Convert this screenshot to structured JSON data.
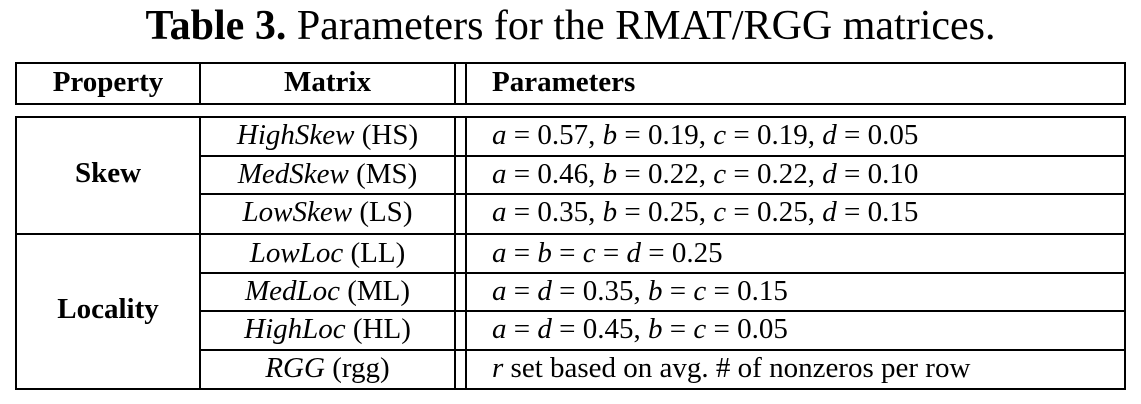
{
  "caption": {
    "lead": "Table 3.",
    "text": "Parameters for the RMAT/RGG matrices."
  },
  "header": {
    "property": "Property",
    "matrix": "Matrix",
    "parameters": "Parameters"
  },
  "groups": {
    "skew": "Skew",
    "locality": "Locality"
  },
  "rows": [
    {
      "name": "HighSkew",
      "abbr": "(HS)"
    },
    {
      "name": "MedSkew",
      "abbr": "(MS)"
    },
    {
      "name": "LowSkew",
      "abbr": "(LS)"
    },
    {
      "name": "LowLoc",
      "abbr": "(LL)"
    },
    {
      "name": "MedLoc",
      "abbr": "(ML)"
    },
    {
      "name": "HighLoc",
      "abbr": "(HL)"
    },
    {
      "name": "RGG",
      "abbr": "(rgg)"
    }
  ],
  "params": {
    "hs": {
      "a": "0.57",
      "b": "0.19",
      "c": "0.19",
      "d": "0.05"
    },
    "ms": {
      "a": "0.46",
      "b": "0.22",
      "c": "0.22",
      "d": "0.10"
    },
    "ls": {
      "a": "0.35",
      "b": "0.25",
      "c": "0.25",
      "d": "0.15"
    },
    "ll": {
      "all": "0.25"
    },
    "ml": {
      "ad": "0.35",
      "bc": "0.15"
    },
    "hl": {
      "ad": "0.45",
      "bc": "0.05"
    },
    "rgg": {
      "var": "r",
      "text": "set based on avg. # of nonzeros per row"
    }
  },
  "symbols": {
    "a": "a",
    "b": "b",
    "c": "c",
    "d": "d",
    "eq": " = ",
    "sep": ", "
  }
}
